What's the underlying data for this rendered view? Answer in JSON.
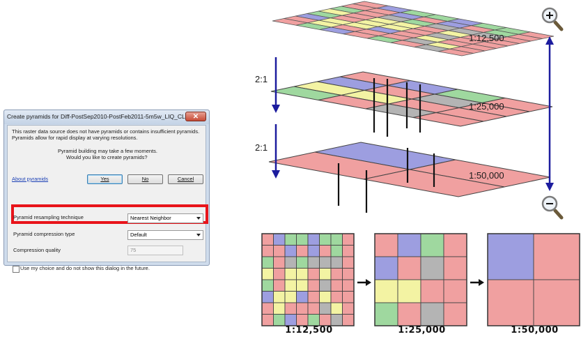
{
  "dialog": {
    "title": "Create pyramids for Diff-PostSep2010-PostFeb2011-5m5w_LIQ_CLI...",
    "close_glyph": "✕",
    "intro_line1": "This raster data source does not have pyramids or contains insufficient pyramids.",
    "intro_line2": "Pyramids allow for rapid display at varying resolutions.",
    "prompt_line1": "Pyramid building may take a few moments.",
    "prompt_line2": "Would you like to create pyramids?",
    "about_link": "About pyramids",
    "yes_label": "Yes",
    "no_label": "No",
    "cancel_label": "Cancel",
    "resampling_label": "Pyramid resampling technique",
    "resampling_value": "Nearest Neighbor",
    "compression_type_label": "Pyramid compression type",
    "compression_type_value": "Default",
    "compression_quality_label": "Compression quality",
    "compression_quality_value": "75",
    "remember_label": "Use my choice and do not show this dialog in the future."
  },
  "diagram": {
    "ratio_upper": "2:1",
    "ratio_lower": "2:1",
    "level_labels": [
      "1:12,500",
      "1:25,000",
      "1:50,000"
    ],
    "grid_labels": [
      "1:12,500",
      "1:25,000",
      "1:50,000"
    ],
    "zoom_in_icon": "magnifier-plus",
    "zoom_out_icon": "magnifier-minus",
    "colors": {
      "red": "#f0a0a0",
      "green": "#9fd89f",
      "blue": "#9d9ee0",
      "yellow": "#f3f3a3",
      "gray": "#b4b4b4",
      "arrow": "#1c1c9e"
    }
  }
}
